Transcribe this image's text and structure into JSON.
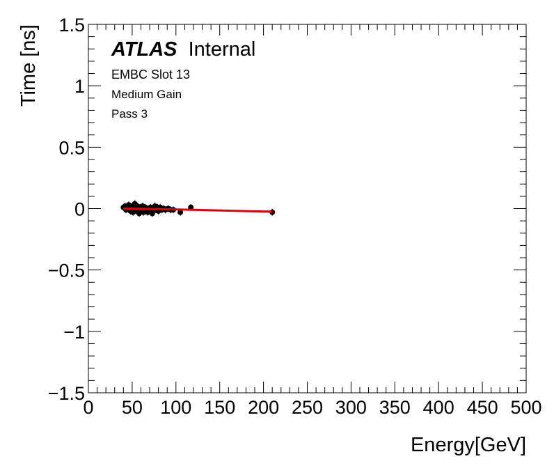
{
  "chart_data": {
    "type": "scatter",
    "xlabel": "Energy[GeV]",
    "ylabel": "Time [ns]",
    "xlim": [
      0,
      500
    ],
    "ylim": [
      -1.5,
      1.5
    ],
    "x_ticks": [
      0,
      50,
      100,
      150,
      200,
      250,
      300,
      350,
      400,
      450,
      500
    ],
    "x_tick_labels": [
      "0",
      "50",
      "100",
      "150",
      "200",
      "250",
      "300",
      "350",
      "400",
      "450",
      "500"
    ],
    "y_ticks": [
      -1.5,
      -1,
      -0.5,
      0,
      0.5,
      1,
      1.5
    ],
    "y_tick_labels": [
      "−1.5",
      "−1",
      "−0.5",
      "0",
      "0.5",
      "1",
      "1.5"
    ],
    "grid": false,
    "annotations": {
      "experiment": "ATLAS",
      "status": "Internal",
      "lines": [
        "EMBC Slot 13",
        "Medium Gain",
        "Pass 3"
      ]
    },
    "series": [
      {
        "kind": "points",
        "color": "#000000",
        "points": [
          {
            "x": 40,
            "y": 0.01
          },
          {
            "x": 42,
            "y": 0.02
          },
          {
            "x": 43,
            "y": -0.01
          },
          {
            "x": 45,
            "y": 0.0
          },
          {
            "x": 46,
            "y": 0.03
          },
          {
            "x": 48,
            "y": -0.02
          },
          {
            "x": 49,
            "y": 0.01
          },
          {
            "x": 50,
            "y": 0.02
          },
          {
            "x": 51,
            "y": -0.03
          },
          {
            "x": 52,
            "y": 0.0
          },
          {
            "x": 53,
            "y": 0.04
          },
          {
            "x": 54,
            "y": 0.01
          },
          {
            "x": 55,
            "y": -0.02
          },
          {
            "x": 56,
            "y": 0.02
          },
          {
            "x": 57,
            "y": -0.01
          },
          {
            "x": 58,
            "y": -0.04
          },
          {
            "x": 59,
            "y": 0.01
          },
          {
            "x": 60,
            "y": -0.02
          },
          {
            "x": 61,
            "y": 0.0
          },
          {
            "x": 62,
            "y": 0.02
          },
          {
            "x": 63,
            "y": -0.03
          },
          {
            "x": 64,
            "y": -0.01
          },
          {
            "x": 65,
            "y": 0.01
          },
          {
            "x": 66,
            "y": -0.02
          },
          {
            "x": 67,
            "y": 0.0
          },
          {
            "x": 68,
            "y": -0.03
          },
          {
            "x": 70,
            "y": -0.01
          },
          {
            "x": 71,
            "y": 0.01
          },
          {
            "x": 72,
            "y": -0.02
          },
          {
            "x": 73,
            "y": -0.04
          },
          {
            "x": 75,
            "y": 0.0
          },
          {
            "x": 76,
            "y": 0.02
          },
          {
            "x": 77,
            "y": -0.01
          },
          {
            "x": 79,
            "y": 0.01
          },
          {
            "x": 80,
            "y": -0.02
          },
          {
            "x": 82,
            "y": 0.01
          },
          {
            "x": 84,
            "y": -0.01
          },
          {
            "x": 86,
            "y": 0.0
          },
          {
            "x": 88,
            "y": -0.01
          },
          {
            "x": 91,
            "y": 0.0
          },
          {
            "x": 94,
            "y": -0.01
          },
          {
            "x": 97,
            "y": -0.01
          },
          {
            "x": 105,
            "y": -0.03
          },
          {
            "x": 117,
            "y": 0.01
          },
          {
            "x": 210,
            "y": -0.03
          }
        ]
      },
      {
        "kind": "fit",
        "color": "#e00000",
        "points": [
          {
            "x": 40,
            "y": 0.0
          },
          {
            "x": 80,
            "y": -0.004
          },
          {
            "x": 120,
            "y": -0.01
          },
          {
            "x": 160,
            "y": -0.017
          },
          {
            "x": 210,
            "y": -0.025
          }
        ]
      }
    ]
  }
}
